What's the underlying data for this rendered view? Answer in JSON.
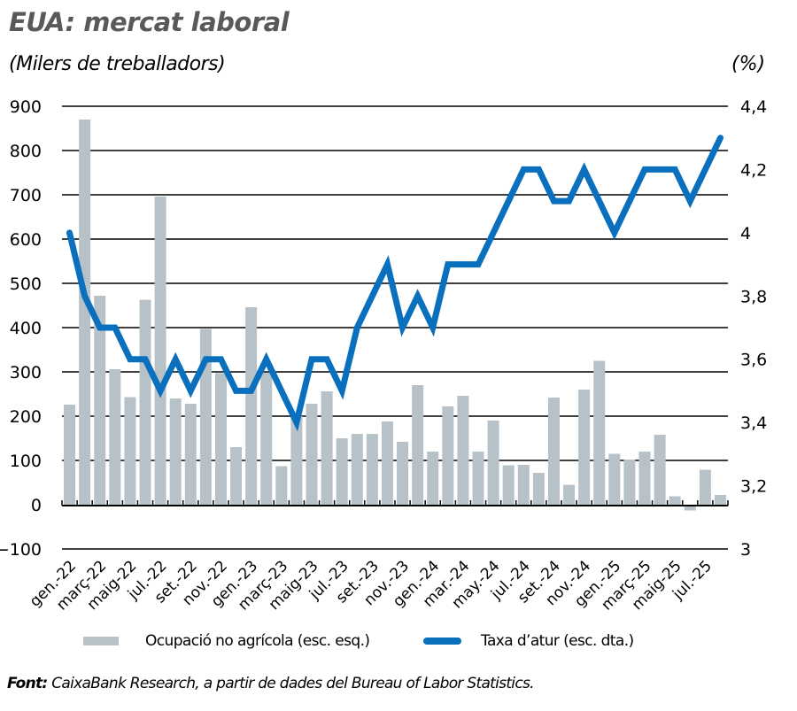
{
  "title": "EUA: mercat laboral",
  "subtitle": "(Milers de treballadors)",
  "right_unit": "(%)",
  "legend": {
    "bars_label": "Ocupació no agrícola (esc. esq.)",
    "line_label": "Taxa d’atur (esc. dta.)"
  },
  "source": {
    "prefix": "Font:",
    "text": " CaixaBank Research, a partir de dades del Bureau of Labor Statistics."
  },
  "colors": {
    "bars": "#b7c1c8",
    "line": "#0a70be",
    "title": "#595959",
    "gridline": "#000000"
  },
  "chart_data": {
    "type": "bar+line",
    "title": "EUA: mercat laboral",
    "ylabel": "(Milers de treballadors)",
    "y2label": "(%)",
    "ylim": [
      -100,
      900
    ],
    "y2lim": [
      3,
      4.4
    ],
    "yticks": [
      "900",
      "800",
      "700",
      "600",
      "500",
      "400",
      "300",
      "200",
      "100",
      "0",
      "−100"
    ],
    "y2ticks": [
      "4,4",
      "4,2",
      "4",
      "3,8",
      "3,6",
      "3,4",
      "3,2",
      "3"
    ],
    "grid": true,
    "legend_position": "bottom",
    "x_tick_labels": [
      "gen.-22",
      "març-22",
      "maig-22",
      "jul.-22",
      "set.-22",
      "nov.-22",
      "gen.-23",
      "març-23",
      "maig-23",
      "jul.-23",
      "set.-23",
      "nov.-23",
      "gen.-24",
      "mar.-24",
      "may.-24",
      "jul.-24",
      "set.-24",
      "nov.-24",
      "gen.-25",
      "març-25",
      "maig-25",
      "jul.-25"
    ],
    "categories": [
      "gen-22",
      "feb-22",
      "mar-22",
      "abr-22",
      "mai-22",
      "jun-22",
      "jul-22",
      "ago-22",
      "set-22",
      "oct-22",
      "nov-22",
      "des-22",
      "gen-23",
      "feb-23",
      "mar-23",
      "abr-23",
      "mai-23",
      "jun-23",
      "jul-23",
      "ago-23",
      "set-23",
      "oct-23",
      "nov-23",
      "des-23",
      "gen-24",
      "feb-24",
      "mar-24",
      "abr-24",
      "mai-24",
      "jun-24",
      "jul-24",
      "ago-24",
      "set-24",
      "oct-24",
      "nov-24",
      "des-24",
      "gen-25",
      "feb-25",
      "mar-25",
      "abr-25",
      "mai-25",
      "jun-25",
      "jul-25",
      "ago-25"
    ],
    "series": [
      {
        "name": "Ocupació no agrícola (esc. esq.)",
        "type": "bar",
        "axis": "left",
        "values": [
          226,
          870,
          472,
          306,
          243,
          463,
          696,
          240,
          228,
          397,
          297,
          130,
          446,
          298,
          87,
          200,
          228,
          256,
          150,
          160,
          160,
          188,
          142,
          270,
          120,
          222,
          246,
          120,
          190,
          89,
          90,
          72,
          242,
          45,
          260,
          325,
          115,
          102,
          120,
          158,
          19,
          -13,
          79,
          22
        ]
      },
      {
        "name": "Taxa d’atur (esc. dta.)",
        "type": "line",
        "axis": "right",
        "values": [
          4.0,
          3.8,
          3.7,
          3.7,
          3.6,
          3.6,
          3.5,
          3.6,
          3.5,
          3.6,
          3.6,
          3.5,
          3.5,
          3.6,
          3.5,
          3.4,
          3.6,
          3.6,
          3.5,
          3.7,
          3.8,
          3.9,
          3.7,
          3.8,
          3.7,
          3.9,
          3.9,
          3.9,
          4.0,
          4.1,
          4.2,
          4.2,
          4.1,
          4.1,
          4.2,
          4.1,
          4.0,
          4.1,
          4.2,
          4.2,
          4.2,
          4.1,
          4.2,
          4.3
        ]
      }
    ]
  }
}
